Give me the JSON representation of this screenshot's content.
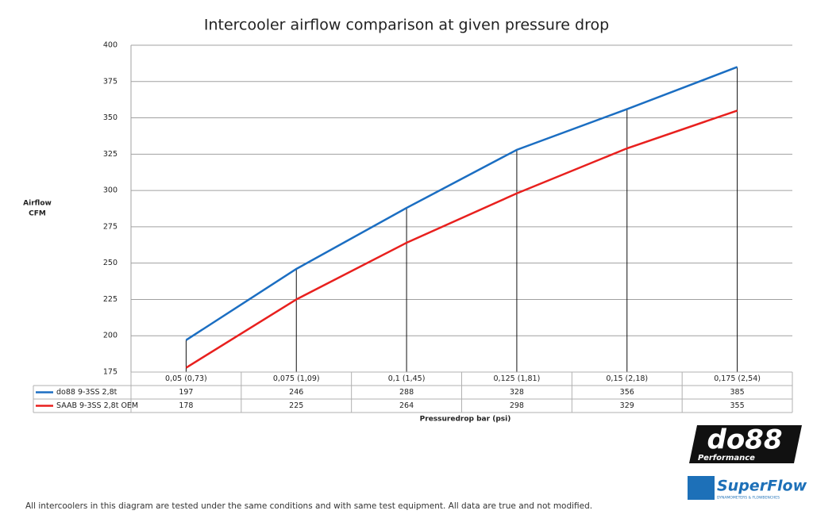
{
  "chart_data": {
    "type": "line",
    "title": "Intercooler airflow comparison at given pressure drop",
    "y_label": [
      "Airflow",
      "CFM"
    ],
    "x_label": "Pressuredrop bar (psi)",
    "categories": [
      "0,05 (0,73)",
      "0,075 (1,09)",
      "0,1 (1,45)",
      "0,125 (1,81)",
      "0,15 (2,18)",
      "0,175 (2,54)"
    ],
    "series": [
      {
        "name": "do88 9-3SS 2,8t",
        "color": "#1b6ec2",
        "values": [
          197,
          246,
          288,
          328,
          356,
          385
        ]
      },
      {
        "name": "SAAB 9-3SS 2,8t OEM",
        "color": "#e8201e",
        "values": [
          178,
          225,
          264,
          298,
          329,
          355
        ]
      }
    ],
    "ylim": [
      175,
      400
    ],
    "yticks": [
      175,
      200,
      225,
      250,
      275,
      300,
      325,
      350,
      375,
      400
    ],
    "grid": true,
    "data_table": true
  },
  "logos": {
    "do88": "do88",
    "do88_sub": "Performance",
    "superflow": "SuperFlow",
    "superflow_sub": "DYNAMOMETERS & FLOWBENCHES"
  },
  "footnote": "All intercoolers in this diagram are tested under the same conditions and with same test equipment. All data are true and not modified."
}
